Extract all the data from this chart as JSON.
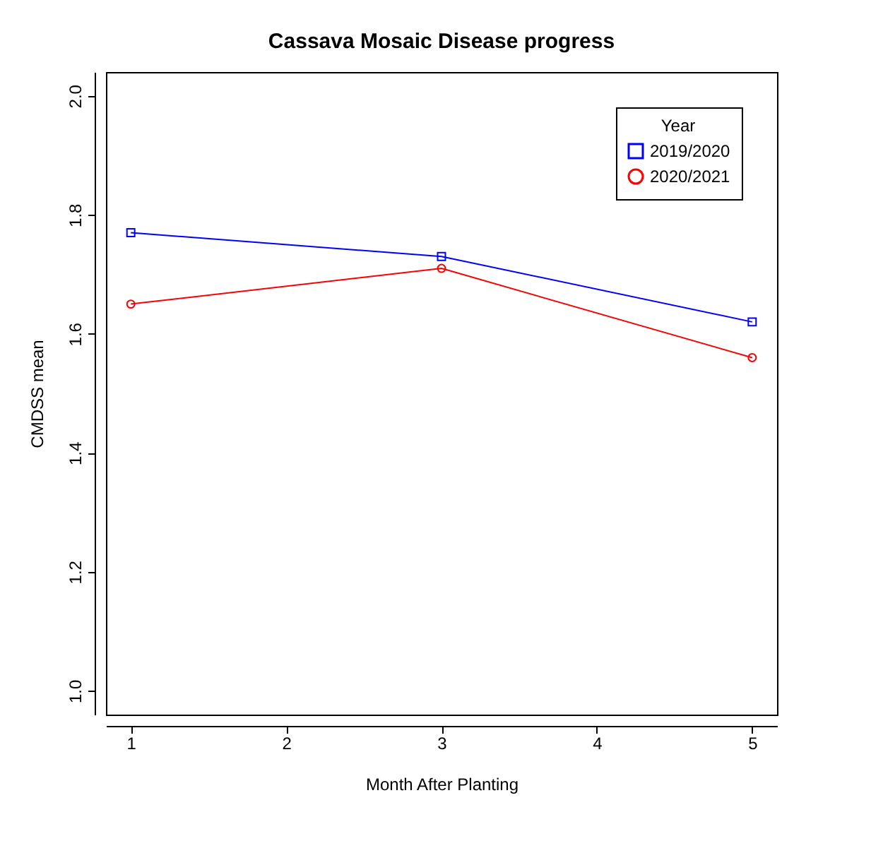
{
  "chart_data": {
    "type": "line",
    "title": "Cassava Mosaic Disease progress",
    "xlabel": "Month After Planting",
    "ylabel": "CMDSS mean",
    "legend_title": "Year",
    "legend": "top right",
    "grid": false,
    "x": [
      1,
      3,
      5
    ],
    "series": [
      {
        "name": "2019/2020",
        "color": "#0000ff",
        "marker": "square",
        "values": [
          1.77,
          1.73,
          1.62
        ]
      },
      {
        "name": "2020/2021",
        "color": "#ff0000",
        "marker": "circle",
        "values": [
          1.65,
          1.71,
          1.56
        ]
      }
    ],
    "xlim": [
      0.84,
      5.16
    ],
    "xticks": [
      1,
      2,
      3,
      4,
      5
    ],
    "ylim": [
      0.96,
      2.04
    ],
    "yticks": [
      {
        "value": 1.0,
        "label": "1.0"
      },
      1.2,
      1.4,
      1.6,
      1.8,
      {
        "value": 2.0,
        "label": "2.0"
      }
    ]
  }
}
